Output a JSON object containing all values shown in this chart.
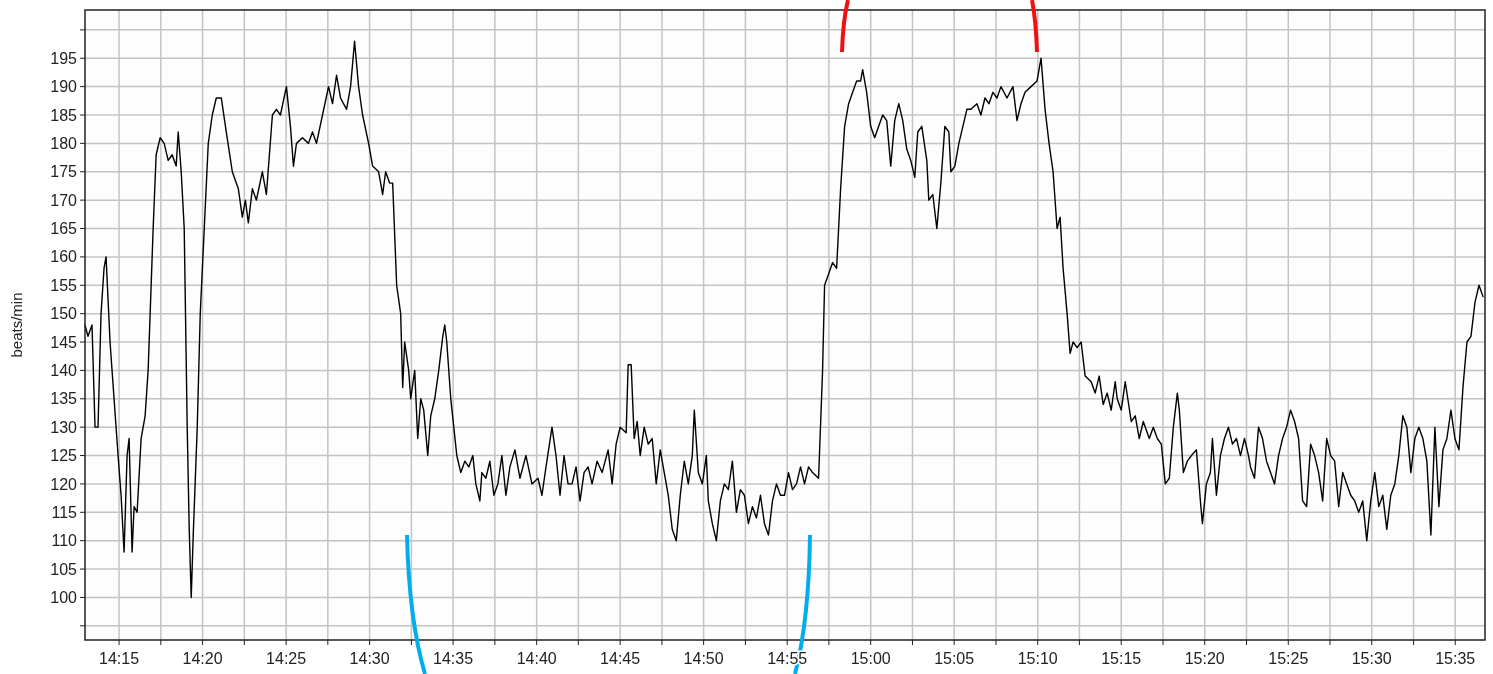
{
  "chart_data": {
    "type": "line",
    "ylabel": "beats/min",
    "grid": true,
    "line_style": "solid",
    "marker": "none",
    "xlim": [
      14.216,
      15.613
    ],
    "ylim": [
      92.5,
      203.5
    ],
    "yticks": [
      {
        "value": 95,
        "label": null
      },
      100,
      105,
      110,
      115,
      120,
      125,
      130,
      135,
      140,
      145,
      150,
      155,
      160,
      165,
      170,
      175,
      180,
      185,
      190,
      195,
      {
        "value": 200,
        "label": null
      }
    ],
    "xticks": [
      {
        "value": 14.25,
        "label": "14:15"
      },
      {
        "value": 14.2917,
        "label": null
      },
      {
        "value": 14.3333,
        "label": "14:20"
      },
      {
        "value": 14.375,
        "label": null
      },
      {
        "value": 14.4167,
        "label": "14:25"
      },
      {
        "value": 14.4583,
        "label": null
      },
      {
        "value": 14.5,
        "label": "14:30"
      },
      {
        "value": 14.5417,
        "label": null
      },
      {
        "value": 14.5833,
        "label": "14:35"
      },
      {
        "value": 14.625,
        "label": null
      },
      {
        "value": 14.6667,
        "label": "14:40"
      },
      {
        "value": 14.7083,
        "label": null
      },
      {
        "value": 14.75,
        "label": "14:45"
      },
      {
        "value": 14.7917,
        "label": null
      },
      {
        "value": 14.8333,
        "label": "14:50"
      },
      {
        "value": 14.875,
        "label": null
      },
      {
        "value": 14.9167,
        "label": "14:55"
      },
      {
        "value": 14.9583,
        "label": null
      },
      {
        "value": 15,
        "label": "15:00"
      },
      {
        "value": 15.0417,
        "label": null
      },
      {
        "value": 15.0833,
        "label": "15:05"
      },
      {
        "value": 15.125,
        "label": null
      },
      {
        "value": 15.1667,
        "label": "15:10"
      },
      {
        "value": 15.2083,
        "label": null
      },
      {
        "value": 15.25,
        "label": "15:15"
      },
      {
        "value": 15.2917,
        "label": null
      },
      {
        "value": 15.3333,
        "label": "15:20"
      },
      {
        "value": 15.375,
        "label": null
      },
      {
        "value": 15.4167,
        "label": "15:25"
      },
      {
        "value": 15.4583,
        "label": null
      },
      {
        "value": 15.5,
        "label": "15:30"
      },
      {
        "value": 15.5417,
        "label": null
      },
      {
        "value": 15.5833,
        "label": "15:35"
      }
    ],
    "series": [
      {
        "color": "#000000",
        "x": [
          14.216,
          14.219,
          14.223,
          14.226,
          14.229,
          14.232,
          14.235,
          14.237,
          14.241,
          14.245,
          14.249,
          14.252,
          14.255,
          14.258,
          14.26,
          14.263,
          14.265,
          14.268,
          14.272,
          14.276,
          14.279,
          14.281,
          14.284,
          14.287,
          14.291,
          14.295,
          14.299,
          14.303,
          14.307,
          14.309,
          14.312,
          14.315,
          14.318,
          14.32,
          14.322,
          14.324,
          14.328,
          14.331,
          14.335,
          14.339,
          14.343,
          14.347,
          14.352,
          14.357,
          14.363,
          14.369,
          14.373,
          14.376,
          14.379,
          14.383,
          14.387,
          14.393,
          14.397,
          14.403,
          14.407,
          14.411,
          14.417,
          14.421,
          14.424,
          14.427,
          14.433,
          14.439,
          14.443,
          14.447,
          14.453,
          14.459,
          14.463,
          14.467,
          14.471,
          14.477,
          14.481,
          14.485,
          14.489,
          14.493,
          14.499,
          14.503,
          14.509,
          14.513,
          14.516,
          14.52,
          14.523,
          14.527,
          14.531,
          14.533,
          14.535,
          14.539,
          14.541,
          14.545,
          14.548,
          14.551,
          14.554,
          14.558,
          14.561,
          14.565,
          14.569,
          14.573,
          14.575,
          14.577,
          14.581,
          14.587,
          14.591,
          14.595,
          14.599,
          14.603,
          14.606,
          14.61,
          14.612,
          14.616,
          14.62,
          14.624,
          14.628,
          14.632,
          14.636,
          14.64,
          14.645,
          14.65,
          14.656,
          14.662,
          14.668,
          14.672,
          14.676,
          14.682,
          14.686,
          14.69,
          14.694,
          14.698,
          14.702,
          14.706,
          14.71,
          14.714,
          14.718,
          14.722,
          14.727,
          14.732,
          14.738,
          14.742,
          14.746,
          14.75,
          14.756,
          14.758,
          14.761,
          14.764,
          14.767,
          14.77,
          14.774,
          14.778,
          14.782,
          14.786,
          14.79,
          14.794,
          14.798,
          14.802,
          14.806,
          14.81,
          14.814,
          14.818,
          14.822,
          14.824,
          14.828,
          14.832,
          14.836,
          14.838,
          14.842,
          14.846,
          14.85,
          14.854,
          14.858,
          14.862,
          14.866,
          14.87,
          14.874,
          14.878,
          14.882,
          14.886,
          14.89,
          14.894,
          14.898,
          14.902,
          14.906,
          14.91,
          14.914,
          14.918,
          14.922,
          14.926,
          14.93,
          14.934,
          14.938,
          14.942,
          14.948,
          14.952,
          14.954,
          14.958,
          14.962,
          14.966,
          14.97,
          14.974,
          14.978,
          14.982,
          14.986,
          14.99,
          14.992,
          14.996,
          15.0,
          15.004,
          15.008,
          15.012,
          15.016,
          15.02,
          15.024,
          15.028,
          15.032,
          15.036,
          15.04,
          15.044,
          15.047,
          15.051,
          15.056,
          15.058,
          15.062,
          15.066,
          15.07,
          15.074,
          15.078,
          15.08,
          15.084,
          15.088,
          15.092,
          15.096,
          15.1,
          15.106,
          15.11,
          15.114,
          15.118,
          15.122,
          15.126,
          15.13,
          15.136,
          15.142,
          15.146,
          15.15,
          15.154,
          15.16,
          15.166,
          15.17,
          15.174,
          15.178,
          15.182,
          15.186,
          15.189,
          15.192,
          15.196,
          15.199,
          15.202,
          15.206,
          15.21,
          15.214,
          15.22,
          15.224,
          15.228,
          15.232,
          15.236,
          15.24,
          15.244,
          15.246,
          15.25,
          15.254,
          15.26,
          15.264,
          15.268,
          15.272,
          15.278,
          15.282,
          15.286,
          15.29,
          15.294,
          15.298,
          15.302,
          15.306,
          15.308,
          15.312,
          15.316,
          15.32,
          15.325,
          15.329,
          15.331,
          15.335,
          15.339,
          15.341,
          15.345,
          15.349,
          15.353,
          15.357,
          15.361,
          15.365,
          15.369,
          15.373,
          15.377,
          15.379,
          15.383,
          15.387,
          15.391,
          15.395,
          15.399,
          15.403,
          15.407,
          15.411,
          15.415,
          15.419,
          15.423,
          15.427,
          15.431,
          15.435,
          15.439,
          15.443,
          15.447,
          15.451,
          15.455,
          15.459,
          15.463,
          15.467,
          15.471,
          15.475,
          15.479,
          15.483,
          15.487,
          15.491,
          15.495,
          15.499,
          15.503,
          15.507,
          15.511,
          15.515,
          15.519,
          15.523,
          15.527,
          15.531,
          15.535,
          15.539,
          15.543,
          15.547,
          15.551,
          15.555,
          15.559,
          15.563,
          15.567,
          15.571,
          15.575,
          15.579,
          15.583,
          15.587,
          15.591,
          15.595,
          15.599,
          15.603,
          15.607,
          15.611
        ],
        "values": [
          148,
          146,
          148,
          130,
          130,
          150,
          158,
          160,
          145,
          135,
          125,
          118,
          108,
          125,
          128,
          108,
          116,
          115,
          128,
          132,
          140,
          150,
          165,
          178,
          181,
          180,
          177,
          178,
          176,
          182,
          175,
          165,
          130,
          112,
          100,
          111,
          130,
          150,
          165,
          180,
          185,
          188,
          188,
          182,
          175,
          172,
          167,
          170,
          166,
          172,
          170,
          175,
          171,
          185,
          186,
          185,
          190,
          183,
          176,
          180,
          181,
          180,
          182,
          180,
          185,
          190,
          187,
          192,
          188,
          186,
          190,
          198,
          190,
          185,
          180,
          176,
          175,
          171,
          175,
          173,
          173,
          155,
          150,
          137,
          145,
          140,
          135,
          140,
          128,
          135,
          133,
          125,
          132,
          135,
          140,
          146,
          148,
          145,
          135,
          125,
          122,
          124,
          123,
          125,
          120,
          117,
          122,
          121,
          124,
          118,
          120,
          125,
          118,
          123,
          126,
          121,
          125,
          120,
          121,
          118,
          123,
          130,
          125,
          118,
          125,
          120,
          120,
          123,
          117,
          122,
          123,
          120,
          124,
          122,
          126,
          120,
          127,
          130,
          129,
          141,
          141,
          128,
          131,
          125,
          130,
          127,
          128,
          120,
          126,
          122,
          118,
          112,
          110,
          118,
          124,
          120,
          125,
          133,
          122,
          120,
          125,
          117,
          113,
          110,
          117,
          120,
          119,
          124,
          115,
          119,
          118,
          113,
          116,
          114,
          118,
          113,
          111,
          117,
          120,
          118,
          118,
          122,
          119,
          120,
          123,
          120,
          123,
          122,
          121,
          140,
          155,
          157,
          159,
          158,
          172,
          183,
          187,
          189,
          191,
          191,
          193,
          189,
          183,
          181,
          183,
          185,
          184,
          176,
          184,
          187,
          184,
          179,
          177,
          174,
          182,
          183,
          177,
          170,
          171,
          165,
          173,
          183,
          182,
          175,
          176,
          180,
          183,
          186,
          186,
          187,
          185,
          188,
          187,
          189,
          188,
          190,
          188,
          190,
          184,
          187,
          189,
          190,
          191,
          195,
          186,
          180,
          175,
          165,
          167,
          158,
          150,
          143,
          145,
          144,
          145,
          139,
          138,
          136,
          139,
          134,
          136,
          133,
          138,
          135,
          133,
          138,
          131,
          132,
          128,
          131,
          128,
          130,
          128,
          127,
          120,
          121,
          130,
          136,
          133,
          122,
          124,
          125,
          126,
          117,
          113,
          120,
          122,
          128,
          118,
          125,
          128,
          130,
          127,
          128,
          125,
          128,
          125,
          123,
          121,
          130,
          128,
          124,
          122,
          120,
          125,
          128,
          130,
          133,
          131,
          128,
          117,
          116,
          127,
          125,
          122,
          117,
          128,
          125,
          124,
          116,
          122,
          120,
          118,
          117,
          115,
          117,
          110,
          117,
          122,
          116,
          118,
          112,
          118,
          120,
          125,
          132,
          130,
          122,
          128,
          130,
          128,
          124,
          111,
          130,
          116,
          126,
          128,
          133,
          128,
          126,
          137,
          145,
          146,
          152,
          155,
          153
        ]
      }
    ]
  }
}
